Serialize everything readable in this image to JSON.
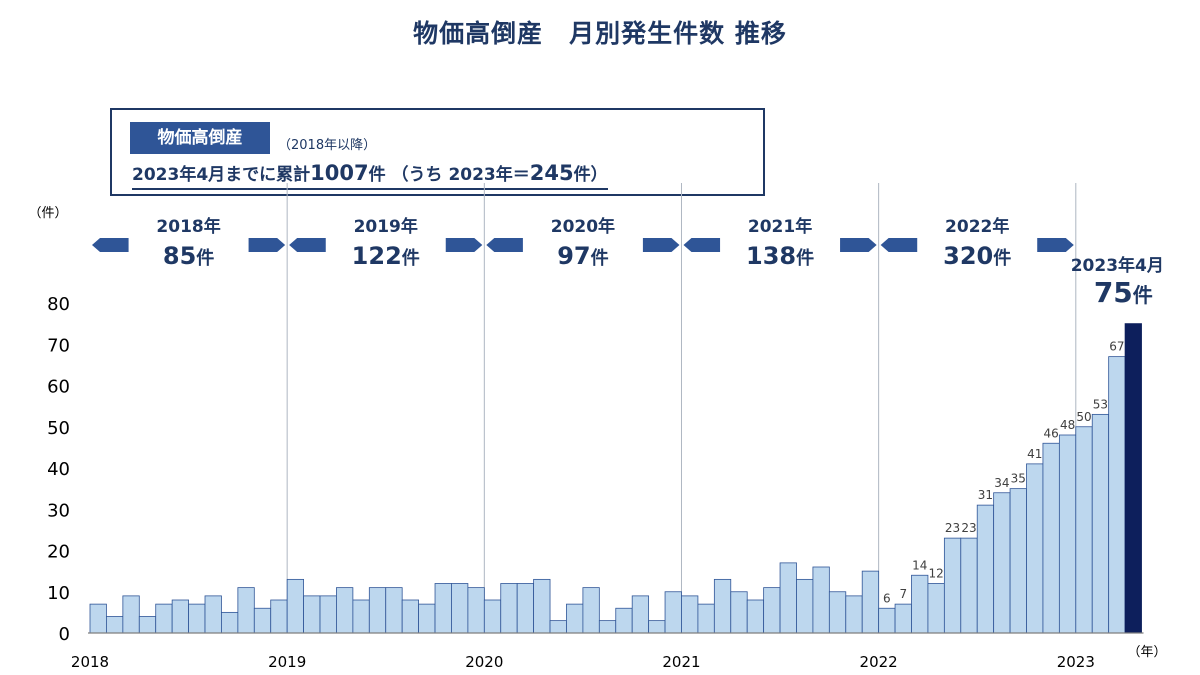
{
  "title": "物価高倒産　月別発生件数 推移",
  "summary": {
    "tag": "物価高倒産",
    "note": "（2018年以降）",
    "line_a": "2023年4月までに累計",
    "line_b": "1007",
    "line_c": "件 （うち 2023年＝",
    "line_d": "245",
    "line_e": "件）"
  },
  "y_unit": "（件）",
  "x_unit": "（年）",
  "colors": {
    "bar": "#bdd7ee",
    "bar_stroke": "#2f5597",
    "highlight": "#0d1f5c",
    "arrow": "#2f5597",
    "text": "#1f3864"
  },
  "annual": [
    {
      "year": "2018年",
      "count": "85",
      "unit": "件"
    },
    {
      "year": "2019年",
      "count": "122",
      "unit": "件"
    },
    {
      "year": "2020年",
      "count": "97",
      "unit": "件"
    },
    {
      "year": "2021年",
      "count": "138",
      "unit": "件"
    },
    {
      "year": "2022年",
      "count": "320",
      "unit": "件"
    }
  ],
  "latest": {
    "label": "2023年4月",
    "count": "75",
    "unit": "件"
  },
  "chart_data": {
    "type": "bar",
    "ylim": [
      0,
      80
    ],
    "yticks": [
      0,
      10,
      20,
      30,
      40,
      50,
      60,
      70,
      80
    ],
    "year_labels": [
      "2018",
      "2019",
      "2020",
      "2021",
      "2022",
      "2023"
    ],
    "categories": [
      "2018-01",
      "2018-02",
      "2018-03",
      "2018-04",
      "2018-05",
      "2018-06",
      "2018-07",
      "2018-08",
      "2018-09",
      "2018-10",
      "2018-11",
      "2018-12",
      "2019-01",
      "2019-02",
      "2019-03",
      "2019-04",
      "2019-05",
      "2019-06",
      "2019-07",
      "2019-08",
      "2019-09",
      "2019-10",
      "2019-11",
      "2019-12",
      "2020-01",
      "2020-02",
      "2020-03",
      "2020-04",
      "2020-05",
      "2020-06",
      "2020-07",
      "2020-08",
      "2020-09",
      "2020-10",
      "2020-11",
      "2020-12",
      "2021-01",
      "2021-02",
      "2021-03",
      "2021-04",
      "2021-05",
      "2021-06",
      "2021-07",
      "2021-08",
      "2021-09",
      "2021-10",
      "2021-11",
      "2021-12",
      "2022-01",
      "2022-02",
      "2022-03",
      "2022-04",
      "2022-05",
      "2022-06",
      "2022-07",
      "2022-08",
      "2022-09",
      "2022-10",
      "2022-11",
      "2022-12",
      "2023-01",
      "2023-02",
      "2023-03",
      "2023-04"
    ],
    "values": [
      7,
      4,
      9,
      4,
      7,
      8,
      7,
      9,
      5,
      11,
      6,
      8,
      13,
      9,
      9,
      11,
      8,
      11,
      11,
      8,
      7,
      12,
      12,
      11,
      8,
      12,
      12,
      13,
      3,
      7,
      11,
      3,
      6,
      9,
      3,
      10,
      9,
      7,
      13,
      10,
      8,
      11,
      17,
      13,
      16,
      10,
      9,
      15,
      6,
      7,
      14,
      12,
      23,
      23,
      31,
      34,
      35,
      41,
      46,
      48,
      50,
      53,
      67,
      75
    ],
    "value_labels": {
      "48": "6",
      "49": "7",
      "50": "14",
      "51": "12",
      "52": "23",
      "53": "23",
      "54": "31",
      "55": "34",
      "56": "35",
      "57": "41",
      "58": "46",
      "59": "48",
      "60": "50",
      "61": "53",
      "62": "67"
    },
    "highlight_index": 63
  }
}
